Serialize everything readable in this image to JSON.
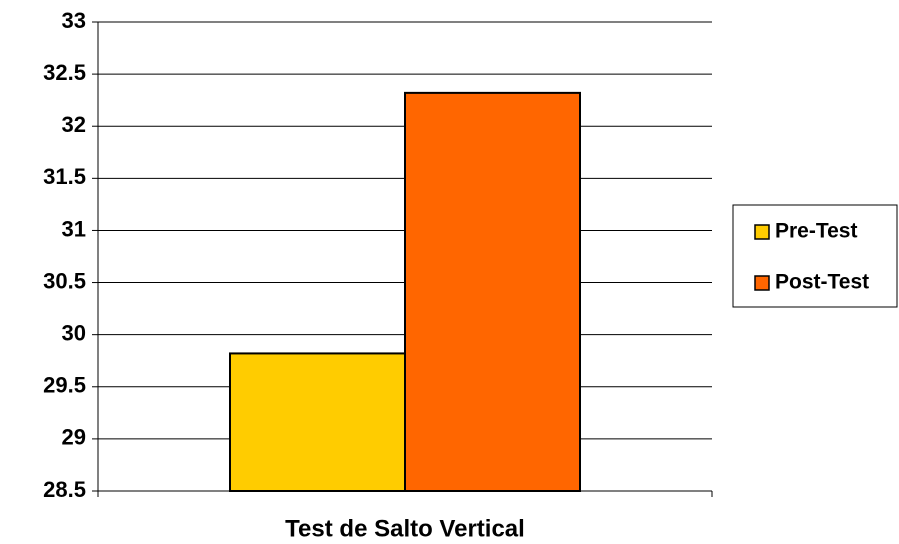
{
  "chart_data": {
    "type": "bar",
    "categories": [
      "Test de Salto Vertical"
    ],
    "series": [
      {
        "name": "Pre-Test",
        "color": "#ffcc00",
        "values": [
          29.82
        ]
      },
      {
        "name": "Post-Test",
        "color": "#ff6600",
        "values": [
          32.32
        ]
      }
    ],
    "ylim": [
      28.5,
      33
    ],
    "yticks": [
      28.5,
      29,
      29.5,
      30,
      30.5,
      31,
      31.5,
      32,
      32.5,
      33
    ],
    "grid": true,
    "legend": "right"
  }
}
